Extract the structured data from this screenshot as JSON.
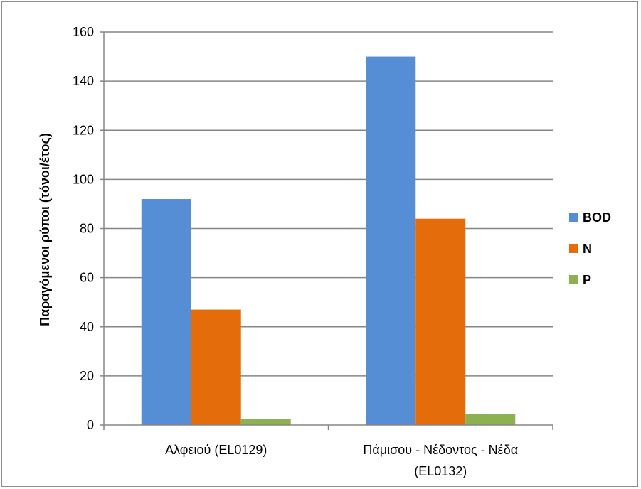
{
  "chart_data": {
    "type": "bar",
    "categories": [
      [
        "Αλφειού (EL0129)"
      ],
      [
        "Πάμισου - Νέδοντος - Νέδα",
        "(EL0132)"
      ]
    ],
    "series": [
      {
        "name": "BOD",
        "color": "#558ed5",
        "values": [
          92,
          150
        ]
      },
      {
        "name": "N",
        "color": "#e46c0a",
        "values": [
          47,
          84
        ]
      },
      {
        "name": "P",
        "color": "#8db051",
        "values": [
          2.5,
          4.5
        ]
      }
    ],
    "ylabel": "Παραγόμενοι ρύποι (τόνοι/έτος)",
    "ylim": [
      0,
      160
    ],
    "yticks": [
      0,
      20,
      40,
      60,
      80,
      100,
      120,
      140,
      160
    ],
    "grid": true,
    "legend": "right"
  }
}
